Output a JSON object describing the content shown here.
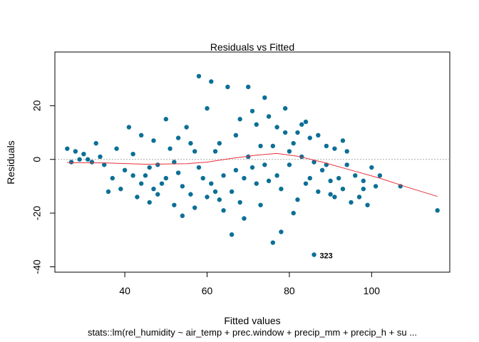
{
  "chart_data": {
    "type": "scatter",
    "title": "Residuals vs Fitted",
    "xlabel": "Fitted values",
    "ylabel": "Residuals",
    "subtitle": "stats::lm(rel_humidity ~ air_temp + prec.window + precip_mm + precip_h + su ...",
    "xlim": [
      23,
      119
    ],
    "ylim": [
      -42,
      40
    ],
    "x_ticks": [
      40,
      60,
      80,
      100
    ],
    "y_ticks": [
      -40,
      -20,
      0,
      20
    ],
    "x_tick_labels": [
      "40",
      "60",
      "80",
      "100"
    ],
    "y_tick_labels": [
      "-40",
      "-20",
      "0",
      "20"
    ],
    "reference_line": 0,
    "point_label": "323",
    "labeled_point": {
      "x": 86.5,
      "y": -35.5
    },
    "smooth": [
      {
        "x": 26,
        "y": -1.2
      },
      {
        "x": 35,
        "y": -1.3
      },
      {
        "x": 45,
        "y": -1.8
      },
      {
        "x": 55,
        "y": -1.6
      },
      {
        "x": 60,
        "y": -1.0
      },
      {
        "x": 66,
        "y": 0.4
      },
      {
        "x": 72,
        "y": 1.6
      },
      {
        "x": 77,
        "y": 2.2
      },
      {
        "x": 82,
        "y": 1.2
      },
      {
        "x": 88,
        "y": -1.0
      },
      {
        "x": 95,
        "y": -4.0
      },
      {
        "x": 102,
        "y": -7.0
      },
      {
        "x": 109,
        "y": -10.5
      },
      {
        "x": 116,
        "y": -13.8
      }
    ],
    "points": [
      {
        "x": 26,
        "y": 4
      },
      {
        "x": 27,
        "y": -1
      },
      {
        "x": 28,
        "y": 3
      },
      {
        "x": 29,
        "y": 0
      },
      {
        "x": 30,
        "y": 2
      },
      {
        "x": 31,
        "y": 0
      },
      {
        "x": 32,
        "y": -1
      },
      {
        "x": 33,
        "y": 6
      },
      {
        "x": 34,
        "y": 1
      },
      {
        "x": 35,
        "y": -2
      },
      {
        "x": 36,
        "y": -12
      },
      {
        "x": 37,
        "y": -7
      },
      {
        "x": 38,
        "y": 4
      },
      {
        "x": 39,
        "y": -11
      },
      {
        "x": 40,
        "y": -4
      },
      {
        "x": 41,
        "y": 12
      },
      {
        "x": 42,
        "y": 2
      },
      {
        "x": 43,
        "y": -14
      },
      {
        "x": 44,
        "y": 9
      },
      {
        "x": 45,
        "y": -6
      },
      {
        "x": 46,
        "y": -16
      },
      {
        "x": 47,
        "y": -11
      },
      {
        "x": 48,
        "y": -2
      },
      {
        "x": 49,
        "y": -9
      },
      {
        "x": 50,
        "y": 15
      },
      {
        "x": 51,
        "y": 4
      },
      {
        "x": 52,
        "y": -17
      },
      {
        "x": 53,
        "y": 8
      },
      {
        "x": 54,
        "y": -21
      },
      {
        "x": 55,
        "y": 12
      },
      {
        "x": 56,
        "y": -13
      },
      {
        "x": 57,
        "y": 3
      },
      {
        "x": 58,
        "y": 31
      },
      {
        "x": 59,
        "y": -7
      },
      {
        "x": 60,
        "y": 19
      },
      {
        "x": 61,
        "y": 29
      },
      {
        "x": 62,
        "y": -12
      },
      {
        "x": 63,
        "y": 6
      },
      {
        "x": 64,
        "y": -19
      },
      {
        "x": 65,
        "y": 27
      },
      {
        "x": 66,
        "y": -28
      },
      {
        "x": 67,
        "y": -4
      },
      {
        "x": 68,
        "y": 15
      },
      {
        "x": 69,
        "y": -22
      },
      {
        "x": 70,
        "y": 27
      },
      {
        "x": 71,
        "y": -3
      },
      {
        "x": 72,
        "y": 13
      },
      {
        "x": 73,
        "y": -17
      },
      {
        "x": 74,
        "y": 23
      },
      {
        "x": 75,
        "y": -8
      },
      {
        "x": 76,
        "y": -31
      },
      {
        "x": 77,
        "y": 12
      },
      {
        "x": 78,
        "y": -27
      },
      {
        "x": 79,
        "y": 19
      },
      {
        "x": 80,
        "y": -2
      },
      {
        "x": 81,
        "y": 6
      },
      {
        "x": 82,
        "y": -15
      },
      {
        "x": 83,
        "y": 13
      },
      {
        "x": 84,
        "y": -9
      },
      {
        "x": 85,
        "y": 8
      },
      {
        "x": 86,
        "y": -35.5
      },
      {
        "x": 87,
        "y": 9
      },
      {
        "x": 88,
        "y": -4
      },
      {
        "x": 89,
        "y": 5
      },
      {
        "x": 90,
        "y": -13
      },
      {
        "x": 91,
        "y": 4
      },
      {
        "x": 92,
        "y": -7
      },
      {
        "x": 93,
        "y": -11
      },
      {
        "x": 94,
        "y": 3
      },
      {
        "x": 95,
        "y": -16
      },
      {
        "x": 96,
        "y": -6
      },
      {
        "x": 97,
        "y": -14
      },
      {
        "x": 98,
        "y": -8
      },
      {
        "x": 99,
        "y": -17
      },
      {
        "x": 100,
        "y": -3
      },
      {
        "x": 101,
        "y": -10
      },
      {
        "x": 102,
        "y": -6
      },
      {
        "x": 107,
        "y": -10
      },
      {
        "x": 116,
        "y": -19
      },
      {
        "x": 44,
        "y": -9
      },
      {
        "x": 48,
        "y": -13
      },
      {
        "x": 53,
        "y": -5
      },
      {
        "x": 57,
        "y": -18
      },
      {
        "x": 61,
        "y": -9
      },
      {
        "x": 63,
        "y": -15
      },
      {
        "x": 67,
        "y": 9
      },
      {
        "x": 69,
        "y": -7
      },
      {
        "x": 71,
        "y": 18
      },
      {
        "x": 73,
        "y": 5
      },
      {
        "x": 75,
        "y": 16
      },
      {
        "x": 77,
        "y": -6
      },
      {
        "x": 79,
        "y": 10
      },
      {
        "x": 81,
        "y": -20
      },
      {
        "x": 83,
        "y": 1
      },
      {
        "x": 85,
        "y": -7
      },
      {
        "x": 87,
        "y": -12
      },
      {
        "x": 89,
        "y": -2
      },
      {
        "x": 91,
        "y": -14
      },
      {
        "x": 93,
        "y": 7
      },
      {
        "x": 42,
        "y": -6
      },
      {
        "x": 46,
        "y": -3
      },
      {
        "x": 50,
        "y": -7
      },
      {
        "x": 54,
        "y": -10
      },
      {
        "x": 58,
        "y": -3
      },
      {
        "x": 62,
        "y": 3
      },
      {
        "x": 66,
        "y": -12
      },
      {
        "x": 70,
        "y": 1
      },
      {
        "x": 74,
        "y": -2
      },
      {
        "x": 78,
        "y": -11
      },
      {
        "x": 82,
        "y": 10
      },
      {
        "x": 86,
        "y": -1
      },
      {
        "x": 90,
        "y": -8
      },
      {
        "x": 94,
        "y": -2
      },
      {
        "x": 98,
        "y": -11
      },
      {
        "x": 47,
        "y": 7
      },
      {
        "x": 52,
        "y": -1
      },
      {
        "x": 56,
        "y": 6
      },
      {
        "x": 60,
        "y": -14
      },
      {
        "x": 64,
        "y": -6
      },
      {
        "x": 68,
        "y": -16
      },
      {
        "x": 72,
        "y": -9
      },
      {
        "x": 76,
        "y": 5
      },
      {
        "x": 80,
        "y": 3
      },
      {
        "x": 84,
        "y": 14
      }
    ]
  }
}
